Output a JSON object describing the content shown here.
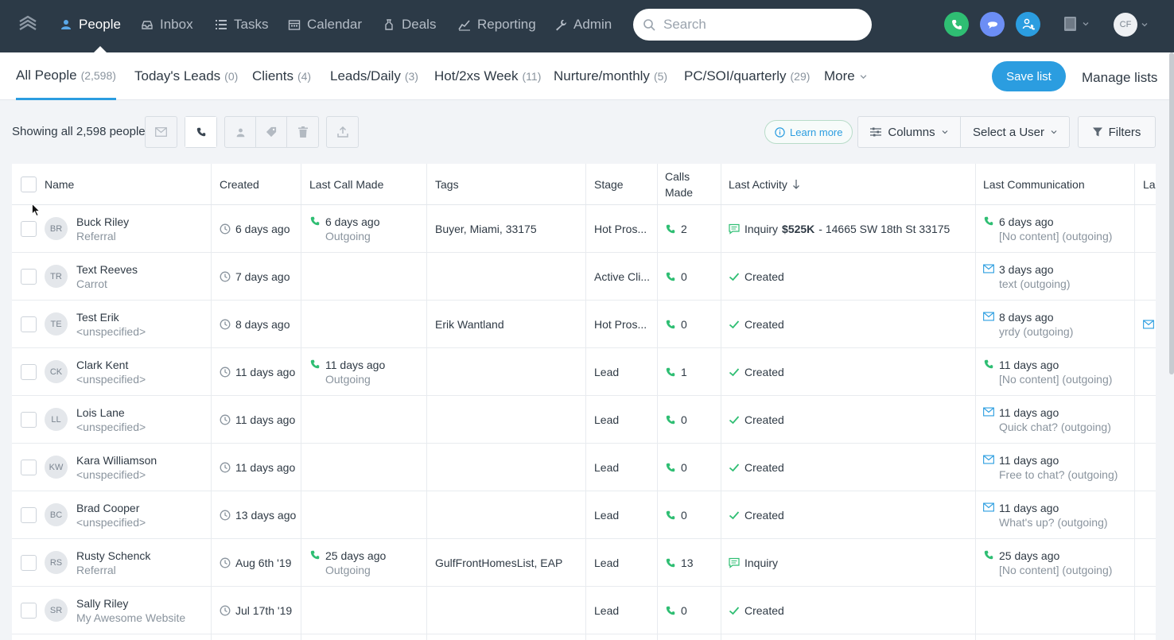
{
  "nav": {
    "items": [
      {
        "label": "People",
        "icon": "person-icon",
        "active": true
      },
      {
        "label": "Inbox",
        "icon": "inbox-icon"
      },
      {
        "label": "Tasks",
        "icon": "list-icon"
      },
      {
        "label": "Calendar",
        "icon": "calendar-icon"
      },
      {
        "label": "Deals",
        "icon": "money-bag-icon"
      },
      {
        "label": "Reporting",
        "icon": "chart-icon"
      },
      {
        "label": "Admin",
        "icon": "wrench-icon"
      }
    ],
    "search_placeholder": "Search",
    "user_initials": "CF",
    "colors": {
      "nav_bg": "#2c3a47",
      "phone": "#2fbe73",
      "chat": "#6c8ef5",
      "contact": "#2b9de0"
    }
  },
  "lists": {
    "tabs": [
      {
        "label": "All People",
        "count": "(2,598)",
        "active": true
      },
      {
        "label": "Today's Leads",
        "count": "(0)"
      },
      {
        "label": "Clients",
        "count": "(4)"
      },
      {
        "label": "Leads/Daily",
        "count": "(3)"
      },
      {
        "label": "Hot/2xs Week",
        "count": "(11)"
      },
      {
        "label": "Nurture/monthly",
        "count": "(5)"
      },
      {
        "label": "PC/SOI/quarterly",
        "count": "(29)"
      },
      {
        "label": "More",
        "count": ""
      }
    ],
    "save_label": "Save list",
    "manage_label": "Manage lists"
  },
  "toolbar": {
    "showing": "Showing all 2,598 people",
    "learn_more": "Learn more",
    "columns": "Columns",
    "select_user": "Select a User",
    "filters": "Filters"
  },
  "table": {
    "headers": {
      "name": "Name",
      "created": "Created",
      "last_call": "Last Call Made",
      "tags": "Tags",
      "stage": "Stage",
      "calls_1": "Calls",
      "calls_2": "Made",
      "last_activity": "Last Activity",
      "last_comm": "Last Communication",
      "cut": "La"
    },
    "rows": [
      {
        "initials": "BR",
        "name": "Buck Riley",
        "source": "Referral",
        "created": "6 days ago",
        "call_time": "6 days ago",
        "call_dir": "Outgoing",
        "tags": "Buyer, Miami, 33175",
        "stage": "Hot Pros...",
        "calls": "2",
        "activity_type": "inquiry",
        "activity": "Inquiry",
        "activity_bold": "$525K",
        "activity_rest": "- 14665 SW 18th St 33175",
        "comm_type": "phone",
        "comm_time": "6 days ago",
        "comm_text": "[No content] (outgoing)",
        "extra_icon": false
      },
      {
        "initials": "TR",
        "name": "Text Reeves",
        "source": "Carrot",
        "created": "7 days ago",
        "call_time": "",
        "call_dir": "",
        "tags": "",
        "stage": "Active Cli...",
        "calls": "0",
        "activity_type": "created",
        "activity": "Created",
        "activity_bold": "",
        "activity_rest": "",
        "comm_type": "email",
        "comm_time": "3 days ago",
        "comm_text": "text (outgoing)",
        "extra_icon": false
      },
      {
        "initials": "TE",
        "name": "Test Erik",
        "source": "<unspecified>",
        "created": "8 days ago",
        "call_time": "",
        "call_dir": "",
        "tags": "Erik Wantland",
        "stage": "Hot Pros...",
        "calls": "0",
        "activity_type": "created",
        "activity": "Created",
        "activity_bold": "",
        "activity_rest": "",
        "comm_type": "email",
        "comm_time": "8 days ago",
        "comm_text": "yrdy (outgoing)",
        "extra_icon": true
      },
      {
        "initials": "CK",
        "name": "Clark Kent",
        "source": "<unspecified>",
        "created": "11 days ago",
        "call_time": "11 days ago",
        "call_dir": "Outgoing",
        "tags": "",
        "stage": "Lead",
        "calls": "1",
        "activity_type": "created",
        "activity": "Created",
        "activity_bold": "",
        "activity_rest": "",
        "comm_type": "phone",
        "comm_time": "11 days ago",
        "comm_text": "[No content] (outgoing)",
        "extra_icon": false
      },
      {
        "initials": "LL",
        "name": "Lois Lane",
        "source": "<unspecified>",
        "created": "11 days ago",
        "call_time": "",
        "call_dir": "",
        "tags": "",
        "stage": "Lead",
        "calls": "0",
        "activity_type": "created",
        "activity": "Created",
        "activity_bold": "",
        "activity_rest": "",
        "comm_type": "email",
        "comm_time": "11 days ago",
        "comm_text": "Quick chat? (outgoing)",
        "extra_icon": false
      },
      {
        "initials": "KW",
        "name": "Kara Williamson",
        "source": "<unspecified>",
        "created": "11 days ago",
        "call_time": "",
        "call_dir": "",
        "tags": "",
        "stage": "Lead",
        "calls": "0",
        "activity_type": "created",
        "activity": "Created",
        "activity_bold": "",
        "activity_rest": "",
        "comm_type": "email",
        "comm_time": "11 days ago",
        "comm_text": "Free to chat? (outgoing)",
        "extra_icon": false
      },
      {
        "initials": "BC",
        "name": "Brad Cooper",
        "source": "<unspecified>",
        "created": "13 days ago",
        "call_time": "",
        "call_dir": "",
        "tags": "",
        "stage": "Lead",
        "calls": "0",
        "activity_type": "created",
        "activity": "Created",
        "activity_bold": "",
        "activity_rest": "",
        "comm_type": "email",
        "comm_time": "11 days ago",
        "comm_text": "What's up? (outgoing)",
        "extra_icon": false
      },
      {
        "initials": "RS",
        "name": "Rusty Schenck",
        "source": "Referral",
        "created": "Aug 6th '19",
        "call_time": "25 days ago",
        "call_dir": "Outgoing",
        "tags": "GulfFrontHomesList, EAP",
        "stage": "Lead",
        "calls": "13",
        "activity_type": "inquiry",
        "activity": "Inquiry",
        "activity_bold": "",
        "activity_rest": "",
        "comm_type": "phone",
        "comm_time": "25 days ago",
        "comm_text": "[No content] (outgoing)",
        "extra_icon": false
      },
      {
        "initials": "SR",
        "name": "Sally Riley",
        "source": "My Awesome Website",
        "created": "Jul 17th '19",
        "call_time": "",
        "call_dir": "",
        "tags": "",
        "stage": "Lead",
        "calls": "0",
        "activity_type": "created",
        "activity": "Created",
        "activity_bold": "",
        "activity_rest": "",
        "comm_type": "",
        "comm_time": "",
        "comm_text": "",
        "extra_icon": false
      }
    ]
  }
}
